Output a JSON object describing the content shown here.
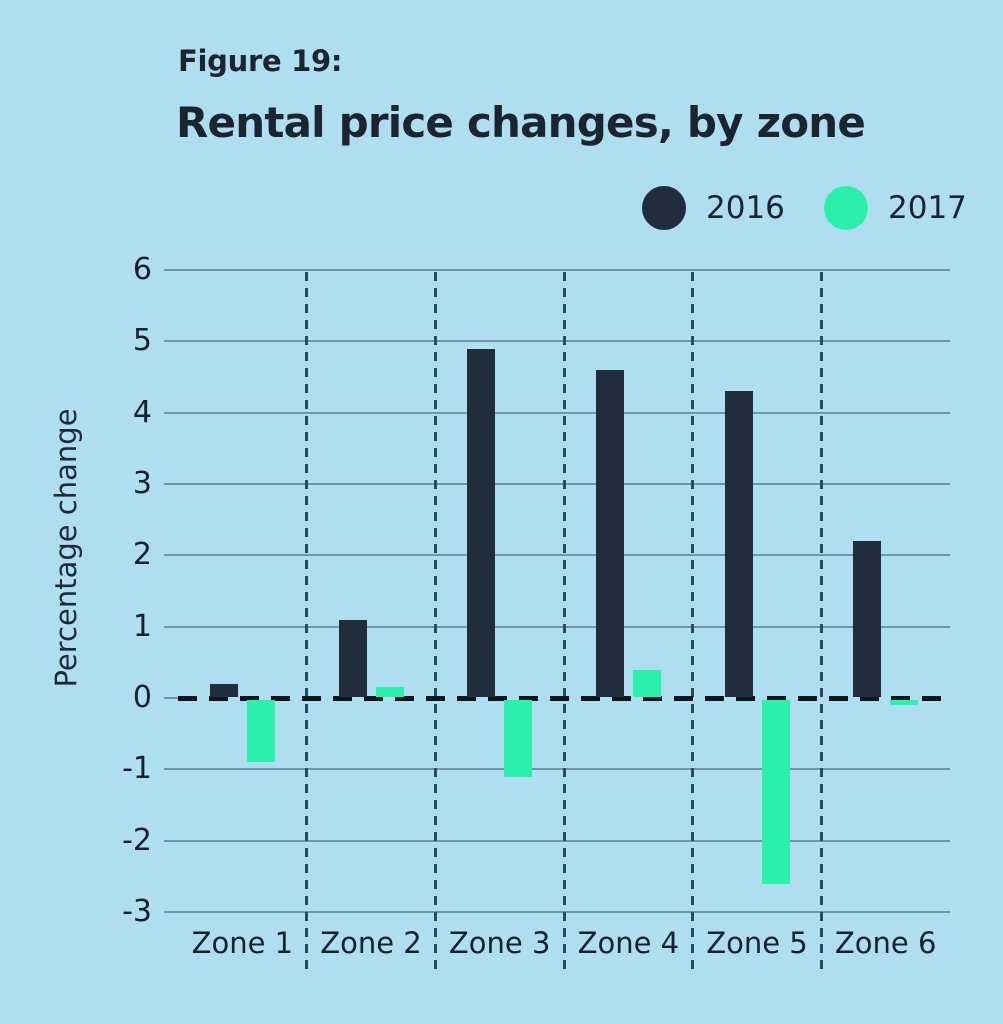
{
  "figure": {
    "label": "Figure 19:",
    "title": "Rental price changes, by zone"
  },
  "chart_data": {
    "type": "bar",
    "categories": [
      "Zone 1",
      "Zone 2",
      "Zone 3",
      "Zone 4",
      "Zone 5",
      "Zone 6"
    ],
    "series": [
      {
        "name": "2016",
        "color": "#212d3c",
        "values": [
          0.2,
          1.1,
          4.9,
          4.6,
          4.3,
          2.2
        ]
      },
      {
        "name": "2017",
        "color": "#2bf0ac",
        "values": [
          -0.9,
          0.15,
          -1.1,
          0.4,
          -2.6,
          -0.1
        ]
      }
    ],
    "title": "Rental price changes, by zone",
    "xlabel": "",
    "ylabel": "Percentage change",
    "ylim": [
      -3,
      6
    ],
    "yticks": [
      6,
      5,
      4,
      3,
      2,
      1,
      0,
      -1,
      -2,
      -3
    ],
    "grid": {
      "horizontal_gridlines": "solid",
      "zone_separators": "vertical dashed",
      "zero_line": "thick black dashed"
    },
    "legend_position": "top-right"
  },
  "colors": {
    "background": "#b0def1",
    "series_2016": "#212d3c",
    "series_2017": "#2bf0ac",
    "gridline": "#6d96aa",
    "separator": "#2a4a61",
    "zero_line": "#0d151d",
    "text": "#1b2530"
  }
}
